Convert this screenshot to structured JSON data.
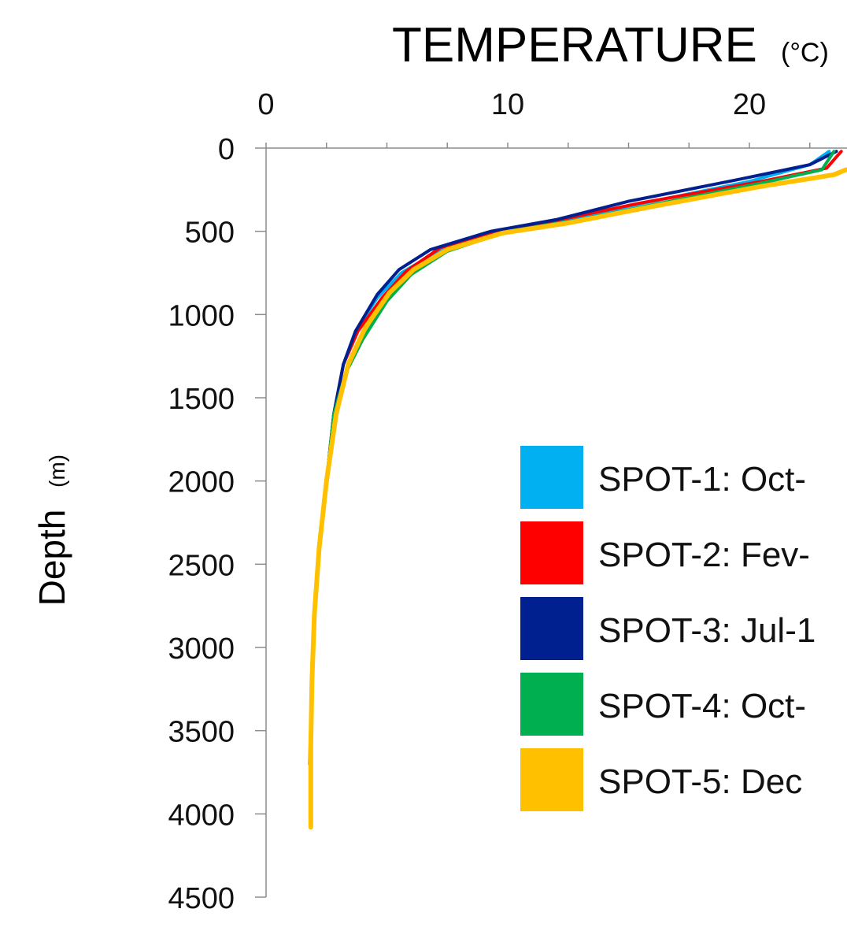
{
  "chart_data": {
    "type": "line",
    "title": "TEMPERATURE",
    "xlabel": "TEMPERATURE",
    "xlabel_unit": "(°C)",
    "ylabel": "Depth",
    "ylabel_unit": "(m)",
    "x_axis_position": "top",
    "y_inverted": true,
    "xlim": [
      0,
      24
    ],
    "ylim": [
      0,
      4500
    ],
    "x_ticks": [
      "0",
      "10",
      "20"
    ],
    "y_ticks": [
      "0",
      "500",
      "1000",
      "1500",
      "2000",
      "2500",
      "3000",
      "3500",
      "4000",
      "4500"
    ],
    "grid": false,
    "legend_position": "lower-right",
    "series": [
      {
        "name": "SPOT-1: Oct-",
        "color": "#00b0f0",
        "points": [
          [
            23.3,
            20
          ],
          [
            22.5,
            100
          ],
          [
            20,
            200
          ],
          [
            15,
            350
          ],
          [
            12,
            450
          ],
          [
            9.5,
            520
          ],
          [
            7,
            630
          ],
          [
            5.6,
            750
          ],
          [
            4.6,
            900
          ],
          [
            3.7,
            1100
          ],
          [
            3.2,
            1300
          ],
          [
            2.8,
            1600
          ],
          [
            2.5,
            2000
          ],
          [
            2.2,
            2400
          ],
          [
            2.0,
            2800
          ],
          [
            1.9,
            3200
          ],
          [
            1.8,
            3700
          ]
        ]
      },
      {
        "name": "SPOT-2: Fev-",
        "color": "#ff0000",
        "points": [
          [
            23.8,
            20
          ],
          [
            23.2,
            120
          ],
          [
            20.5,
            200
          ],
          [
            15.5,
            330
          ],
          [
            12.5,
            420
          ],
          [
            9.5,
            500
          ],
          [
            7.2,
            600
          ],
          [
            5.8,
            740
          ],
          [
            4.8,
            900
          ],
          [
            3.8,
            1100
          ],
          [
            3.2,
            1300
          ],
          [
            2.8,
            1600
          ],
          [
            2.5,
            2000
          ],
          [
            2.2,
            2400
          ],
          [
            2.0,
            2800
          ],
          [
            1.9,
            3200
          ]
        ]
      },
      {
        "name": "SPOT-3: Jul-1",
        "color": "#002090",
        "points": [
          [
            23.6,
            20
          ],
          [
            22.5,
            100
          ],
          [
            19.5,
            190
          ],
          [
            15,
            320
          ],
          [
            12,
            430
          ],
          [
            9.3,
            500
          ],
          [
            6.8,
            610
          ],
          [
            5.5,
            730
          ],
          [
            4.6,
            880
          ],
          [
            3.7,
            1100
          ],
          [
            3.2,
            1300
          ],
          [
            2.8,
            1600
          ],
          [
            2.5,
            2000
          ],
          [
            2.2,
            2400
          ],
          [
            2.0,
            2800
          ],
          [
            1.9,
            3100
          ]
        ]
      },
      {
        "name": "SPOT-4: Oct-",
        "color": "#00b050",
        "points": [
          [
            23.5,
            20
          ],
          [
            23.0,
            130
          ],
          [
            20.5,
            210
          ],
          [
            16,
            340
          ],
          [
            13,
            430
          ],
          [
            10,
            500
          ],
          [
            7.5,
            620
          ],
          [
            6.0,
            760
          ],
          [
            5.0,
            920
          ],
          [
            4.0,
            1150
          ],
          [
            3.3,
            1350
          ],
          [
            2.8,
            1600
          ],
          [
            2.5,
            2000
          ],
          [
            2.2,
            2400
          ],
          [
            2.0,
            2800
          ],
          [
            1.9,
            3300
          ]
        ]
      },
      {
        "name": "SPOT-5: Dec",
        "color": "#ffc000",
        "points": [
          [
            24,
            130
          ],
          [
            23.5,
            160
          ],
          [
            20.5,
            230
          ],
          [
            16,
            350
          ],
          [
            12.5,
            450
          ],
          [
            9.8,
            510
          ],
          [
            7.5,
            610
          ],
          [
            6.1,
            730
          ],
          [
            5.1,
            870
          ],
          [
            4.1,
            1080
          ],
          [
            3.4,
            1300
          ],
          [
            2.9,
            1600
          ],
          [
            2.5,
            2000
          ],
          [
            2.2,
            2400
          ],
          [
            2.0,
            2800
          ],
          [
            1.9,
            3200
          ],
          [
            1.85,
            3600
          ],
          [
            1.85,
            4080
          ]
        ]
      }
    ]
  }
}
